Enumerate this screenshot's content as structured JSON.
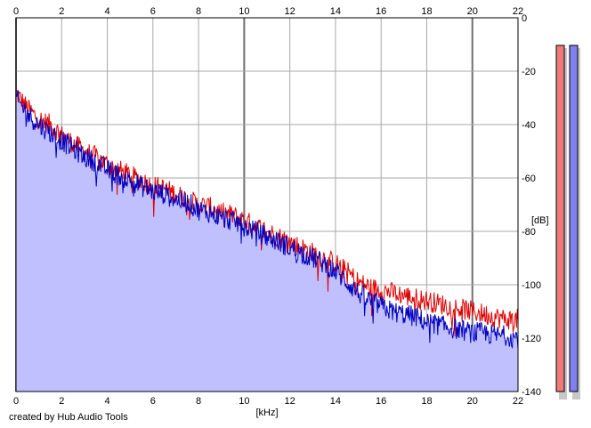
{
  "credit": "created by Hub Audio Tools",
  "chart_data": {
    "type": "area",
    "xlabel": "[kHz]",
    "ylabel": "[dB]",
    "xlim": [
      0,
      22
    ],
    "ylim": [
      -140,
      0
    ],
    "x_ticks": [
      0,
      2,
      4,
      6,
      8,
      10,
      12,
      14,
      16,
      18,
      20,
      22
    ],
    "y_ticks": [
      0,
      -20,
      -40,
      -60,
      -80,
      -100,
      -120,
      -140
    ],
    "grid": true,
    "series": [
      {
        "color": "#e00000",
        "x": [
          0,
          0.5,
          1,
          1.5,
          2,
          2.5,
          3,
          3.5,
          4,
          4.5,
          5,
          5.5,
          6,
          6.5,
          7,
          7.5,
          8,
          8.5,
          9,
          9.5,
          10,
          10.5,
          11,
          11.5,
          12,
          12.5,
          13,
          13.5,
          14,
          14.5,
          15,
          15.5,
          16,
          16.5,
          17,
          17.5,
          18,
          18.5,
          19,
          19.5,
          20,
          20.5,
          21,
          21.5,
          22
        ],
        "values": [
          -28,
          -34,
          -38,
          -40,
          -44,
          -47,
          -50,
          -52,
          -55,
          -57,
          -59,
          -61,
          -63,
          -64,
          -66,
          -68,
          -70,
          -71,
          -73,
          -74,
          -76,
          -78,
          -80,
          -82,
          -84,
          -86,
          -88,
          -90,
          -92,
          -95,
          -99,
          -101,
          -102,
          -103,
          -104,
          -105,
          -106,
          -107,
          -108,
          -109,
          -110,
          -111,
          -112,
          -113,
          -113
        ]
      },
      {
        "color": "#0000c0",
        "x": [
          0,
          0.5,
          1,
          1.5,
          2,
          2.5,
          3,
          3.5,
          4,
          4.5,
          5,
          5.5,
          6,
          6.5,
          7,
          7.5,
          8,
          8.5,
          9,
          9.5,
          10,
          10.5,
          11,
          11.5,
          12,
          12.5,
          13,
          13.5,
          14,
          14.5,
          15,
          15.5,
          16,
          16.5,
          17,
          17.5,
          18,
          18.5,
          19,
          19.5,
          20,
          20.5,
          21,
          21.5,
          22
        ],
        "values": [
          -30,
          -36,
          -40,
          -43,
          -46,
          -49,
          -52,
          -54,
          -57,
          -59,
          -61,
          -63,
          -65,
          -66,
          -68,
          -69,
          -72,
          -73,
          -75,
          -76,
          -78,
          -80,
          -82,
          -84,
          -86,
          -88,
          -90,
          -92,
          -95,
          -99,
          -103,
          -106,
          -108,
          -110,
          -111,
          -112,
          -114,
          -115,
          -116,
          -117,
          -118,
          -118,
          -119,
          -119,
          -120
        ]
      }
    ],
    "level_meters": [
      {
        "color": "#f07a7a"
      },
      {
        "color": "#8080f0"
      }
    ]
  }
}
